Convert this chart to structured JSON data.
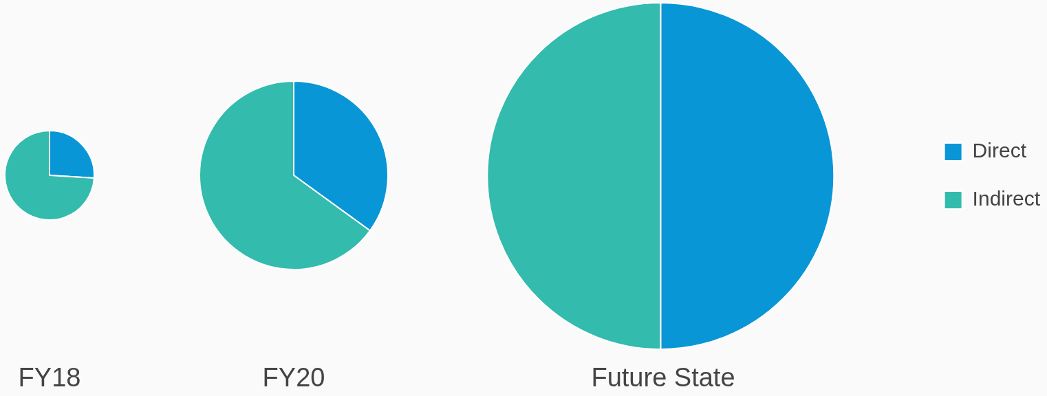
{
  "chart_data": [
    {
      "type": "pie",
      "title": "FY18",
      "categories": [
        null,
        null
      ],
      "values": [
        26,
        74
      ],
      "colors": [
        "#0896d6",
        "#33bbad"
      ],
      "legend": false
    },
    {
      "type": "pie",
      "title": "FY20",
      "categories": [
        null,
        null
      ],
      "values": [
        35,
        65
      ],
      "colors": [
        "#0896d6",
        "#33bbad"
      ],
      "legend": false
    },
    {
      "type": "pie",
      "title": "Future State",
      "categories": [
        "Direct",
        "Indirect"
      ],
      "values": [
        50,
        50
      ],
      "colors": [
        "#0896d6",
        "#33bbad"
      ],
      "legend": "right"
    }
  ]
}
